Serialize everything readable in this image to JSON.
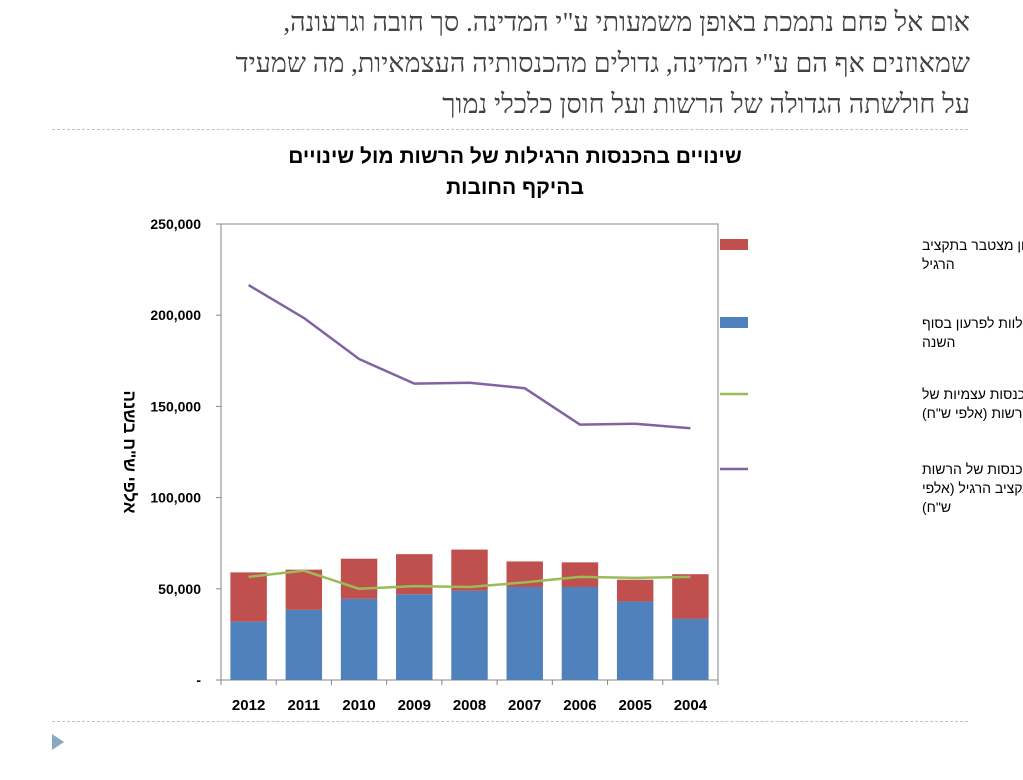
{
  "slide": {
    "heading_lines": [
      "אום אל פחם נתמכת באופן משמעותי ע\"י המדינה. סך חובה וגרעונה,",
      "שמאוזנים אף הם ע\"י המדינה, גדולים מהכנסותיה העצמאיות, מה שמעיד",
      "על חולשתה הגדולה של הרשות ועל חוסן כלכלי נמוך"
    ]
  },
  "chart_data": {
    "type": "bar",
    "title_lines": [
      "שינויים בהכנסות הרגילות של הרשות מול שינויים",
      "בהיקף החובות"
    ],
    "xlabel": "",
    "ylabel": "אלפי ש\"ח בשנה",
    "categories": [
      "2012",
      "2011",
      "2010",
      "2009",
      "2008",
      "2007",
      "2006",
      "2005",
      "2004"
    ],
    "y_ticks": [
      "-",
      "50,000",
      "100,000",
      "150,000",
      "200,000",
      "250,000"
    ],
    "ylim": [
      0,
      250000
    ],
    "grid": false,
    "stacked": true,
    "legend_position": "right",
    "colors": {
      "deficit": "#c0504d",
      "loans": "#4f81bd",
      "own_income": "#9bbb59",
      "total_income": "#8064a2",
      "axis": "#868686"
    },
    "series": [
      {
        "key": "loans",
        "name": "עומס מלוות לפרעון בסוף השנה",
        "legend_lines": [
          "עומס מלוות לפרעון בסוף",
          "השנה"
        ],
        "kind": "bar",
        "values": [
          32000,
          38500,
          44500,
          47000,
          49000,
          51000,
          51000,
          43000,
          33500
        ]
      },
      {
        "key": "deficit",
        "name": "גרעון מצטבר בתקציב הרגיל",
        "legend_lines": [
          "גרעון מצטבר בתקציב",
          "הרגיל"
        ],
        "kind": "bar",
        "values": [
          27000,
          22000,
          22000,
          22000,
          22500,
          14000,
          13500,
          12000,
          24500
        ]
      },
      {
        "key": "own_income",
        "name": "הכנסות עצמיות של הרשות (אלפי ש\"ח)",
        "legend_lines": [
          "הכנסות עצמיות של",
          "הרשות  (אלפי ש\"ח)"
        ],
        "kind": "line",
        "values": [
          56500,
          60000,
          50000,
          51500,
          51000,
          53500,
          56500,
          56000,
          56500
        ]
      },
      {
        "key": "total_income",
        "name": "סה\"כ הכנסות של הרשות מן התקציב הרגיל (אלפי ש\"ח)",
        "legend_lines": [
          "סה\"כ הכנסות של הרשות",
          "מן התקציב הרגיל  (אלפי",
          "ש\"ח)"
        ],
        "kind": "line",
        "values": [
          216500,
          198500,
          176000,
          162500,
          163000,
          160000,
          140000,
          140500,
          138000
        ]
      }
    ]
  }
}
